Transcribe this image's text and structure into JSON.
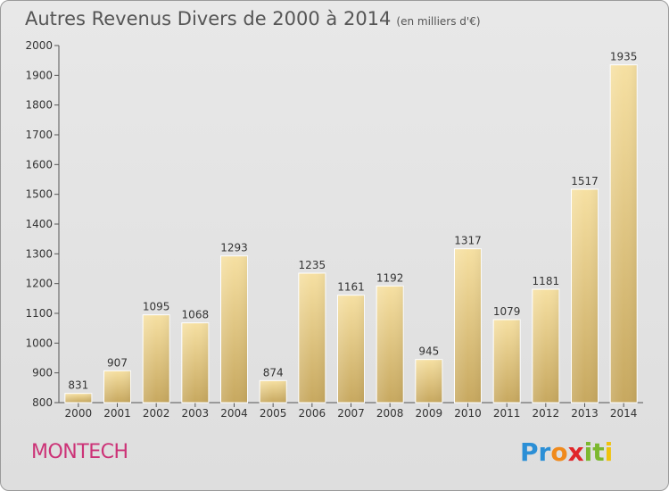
{
  "title": "Autres Revenus Divers de 2000 à 2014",
  "subtitle": "(en milliers d'€)",
  "commune": "MONTECH",
  "logo": {
    "text": "Proxiti",
    "letters": [
      "P",
      "r",
      "o",
      "x",
      "i",
      "t",
      "i"
    ],
    "colors": [
      "#2b8fd6",
      "#2b8fd6",
      "#f08a1c",
      "#e0262a",
      "#7cb82f",
      "#7cb82f",
      "#f0c20c"
    ]
  },
  "colors": {
    "bar_light": "#f4dc9a",
    "bar_dark": "#c9ab63",
    "commune": "#cc3377"
  },
  "chart_data": {
    "type": "bar",
    "categories": [
      "2000",
      "2001",
      "2002",
      "2003",
      "2004",
      "2005",
      "2006",
      "2007",
      "2008",
      "2009",
      "2010",
      "2011",
      "2012",
      "2013",
      "2014"
    ],
    "values": [
      831,
      907,
      1095,
      1068,
      1293,
      874,
      1235,
      1161,
      1192,
      945,
      1317,
      1079,
      1181,
      1517,
      1935
    ],
    "title": "Autres Revenus Divers de 2000 à 2014",
    "xlabel": "",
    "ylabel": "",
    "ylim": [
      800,
      2000
    ],
    "yticks": [
      800,
      900,
      1000,
      1100,
      1200,
      1300,
      1400,
      1500,
      1600,
      1700,
      1800,
      1900,
      2000
    ],
    "grid": false
  }
}
